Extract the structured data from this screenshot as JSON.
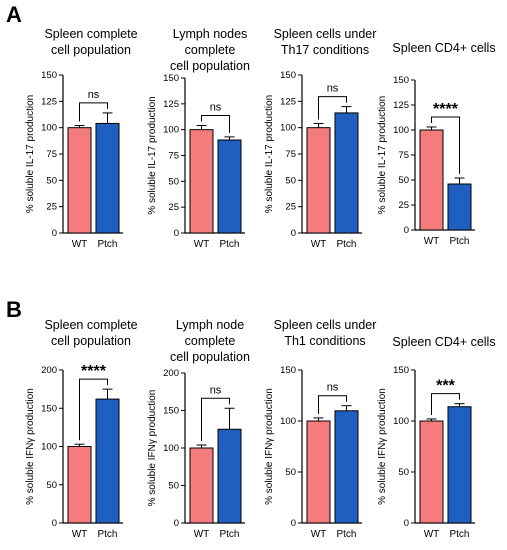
{
  "panels": [
    {
      "letter": "A"
    },
    {
      "letter": "B"
    }
  ],
  "colors": {
    "wt": "#f47c7c",
    "ptch": "#1f5fbf",
    "outline": "#000000",
    "text": "#000000"
  },
  "chart_data": [
    {
      "type": "bar",
      "panel": "A",
      "title": "Spleen complete\ncell population",
      "ylabel": "% soluble IL-17 production",
      "categories": [
        "WT",
        "Ptch"
      ],
      "values": [
        100,
        104
      ],
      "errors": [
        2,
        10
      ],
      "ylim": [
        0,
        150
      ],
      "yticks": [
        0,
        25,
        50,
        75,
        100,
        125,
        150
      ],
      "significance": "ns",
      "grid": false
    },
    {
      "type": "bar",
      "panel": "A",
      "title": "Lymph nodes\ncomplete\ncell population",
      "ylabel": "% soluble IL-17 production",
      "categories": [
        "WT",
        "Ptch"
      ],
      "values": [
        100,
        90
      ],
      "errors": [
        4,
        3
      ],
      "ylim": [
        0,
        150
      ],
      "yticks": [
        0,
        25,
        50,
        75,
        100,
        125,
        150
      ],
      "significance": "ns",
      "grid": false
    },
    {
      "type": "bar",
      "panel": "A",
      "title": "Spleen cells under\nTh17 conditions",
      "ylabel": "% soluble IL-17 production",
      "categories": [
        "WT",
        "Ptch"
      ],
      "values": [
        100,
        114
      ],
      "errors": [
        4,
        6
      ],
      "ylim": [
        0,
        150
      ],
      "yticks": [
        0,
        25,
        50,
        75,
        100,
        125,
        150
      ],
      "significance": "ns",
      "grid": false
    },
    {
      "type": "bar",
      "panel": "A",
      "title": "Spleen CD4+ cells",
      "ylabel": "% soluble IL-17 production",
      "categories": [
        "WT",
        "Ptch"
      ],
      "values": [
        100,
        46
      ],
      "errors": [
        3,
        6
      ],
      "ylim": [
        0,
        150
      ],
      "yticks": [
        0,
        25,
        50,
        75,
        100,
        125,
        150
      ],
      "significance": "****",
      "grid": false
    },
    {
      "type": "bar",
      "panel": "B",
      "title": "Spleen complete\ncell population",
      "ylabel": "% soluble IFNγ production",
      "categories": [
        "WT",
        "Ptch"
      ],
      "values": [
        100,
        162
      ],
      "errors": [
        3,
        13
      ],
      "ylim": [
        0,
        200
      ],
      "yticks": [
        0,
        50,
        100,
        150,
        200
      ],
      "significance": "****",
      "grid": false
    },
    {
      "type": "bar",
      "panel": "B",
      "title": "Lymph node\ncomplete\ncell population",
      "ylabel": "% soluble IFNγ production",
      "categories": [
        "WT",
        "Ptch"
      ],
      "values": [
        100,
        125
      ],
      "errors": [
        4,
        28
      ],
      "ylim": [
        0,
        200
      ],
      "yticks": [
        0,
        50,
        100,
        150,
        200
      ],
      "significance": "ns",
      "grid": false
    },
    {
      "type": "bar",
      "panel": "B",
      "title": "Spleen cells under\nTh1 conditions",
      "ylabel": "% soluble IFNγ production",
      "categories": [
        "WT",
        "Ptch"
      ],
      "values": [
        100,
        110
      ],
      "errors": [
        3,
        5
      ],
      "ylim": [
        0,
        150
      ],
      "yticks": [
        0,
        50,
        100,
        150
      ],
      "significance": "ns",
      "grid": false
    },
    {
      "type": "bar",
      "panel": "B",
      "title": "Spleen CD4+ cells",
      "ylabel": "% soluble IFNγ production",
      "categories": [
        "WT",
        "Ptch"
      ],
      "values": [
        100,
        114
      ],
      "errors": [
        2,
        3
      ],
      "ylim": [
        0,
        150
      ],
      "yticks": [
        0,
        50,
        100,
        150
      ],
      "significance": "***",
      "grid": false
    }
  ]
}
